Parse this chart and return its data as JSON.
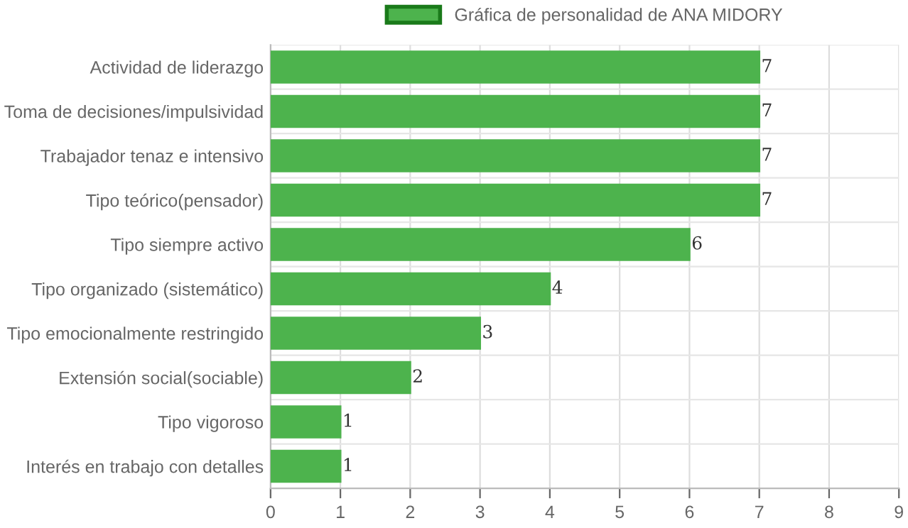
{
  "chart_data": {
    "type": "bar",
    "orientation": "horizontal",
    "categories": [
      "Actividad de liderazgo",
      "Toma de decisiones/impulsividad",
      "Trabajador tenaz e intensivo",
      "Tipo teórico(pensador)",
      "Tipo siempre activo",
      "Tipo organizado (sistemático)",
      "Tipo emocionalmente restringido",
      "Extensión social(sociable)",
      "Tipo vigoroso",
      "Interés en trabajo con detalles"
    ],
    "series": [
      {
        "name": "Gráfica de personalidad de ANA MIDORY",
        "color": "#4db34d",
        "values": [
          7,
          7,
          7,
          7,
          6,
          4,
          3,
          2,
          1,
          1
        ]
      }
    ],
    "xlim": [
      0,
      9
    ],
    "xticks": [
      0,
      1,
      2,
      3,
      4,
      5,
      6,
      7,
      8,
      9
    ],
    "grid": true,
    "legend": "top",
    "data_labels": true
  }
}
